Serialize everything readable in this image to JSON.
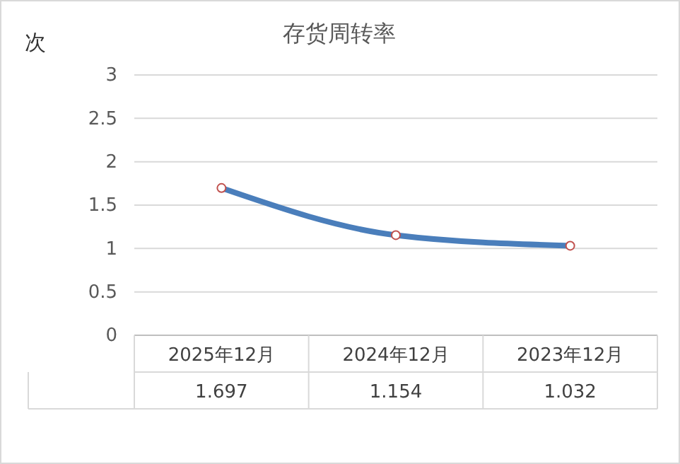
{
  "chart_data": {
    "type": "line",
    "title": "存货周转率",
    "ylabel": "次",
    "categories": [
      "2025年12月",
      "2024年12月",
      "2023年12月"
    ],
    "series": [
      {
        "color": "#4a7ebb",
        "values": [
          1.697,
          1.154,
          1.032
        ]
      }
    ],
    "ylim": [
      0,
      3
    ],
    "yticks": [
      0,
      0.5,
      1,
      1.5,
      2,
      2.5,
      3
    ],
    "grid": "y",
    "marker": "circle",
    "line_style": "solid",
    "data_labels": true
  }
}
